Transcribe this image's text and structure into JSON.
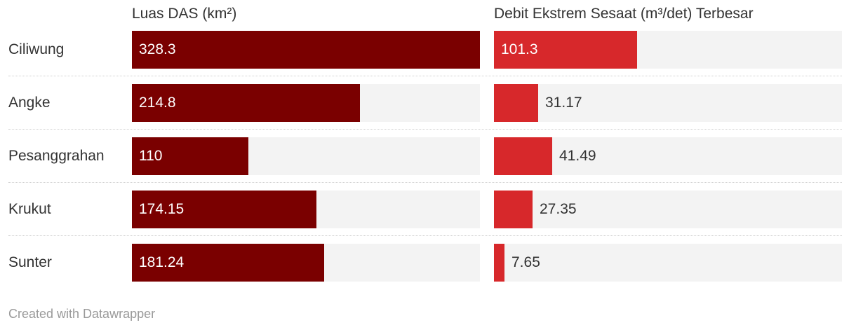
{
  "chart_data": {
    "type": "bar",
    "orientation": "horizontal",
    "categories": [
      "Ciliwung",
      "Angke",
      "Pesanggrahan",
      "Krukut",
      "Sunter"
    ],
    "series": [
      {
        "name": "Luas DAS (km²)",
        "values": [
          328.3,
          214.8,
          110,
          174.15,
          181.24
        ],
        "labels": [
          "328.3",
          "214.8",
          "110",
          "174.15",
          "181.24"
        ],
        "max": 328.3,
        "color": "#7a0000"
      },
      {
        "name": "Debit Ekstrem Sesaat (m³/det) Terbesar",
        "values": [
          101.3,
          31.17,
          41.49,
          27.35,
          7.65
        ],
        "labels": [
          "101.3",
          "31.17",
          "41.49",
          "27.35",
          "7.65"
        ],
        "max": 246.7,
        "color": "#d7282b"
      }
    ],
    "title": "",
    "xlabel": "",
    "ylabel": ""
  },
  "footer": "Created with Datawrapper",
  "colors": {
    "track": "#f3f3f3",
    "label_on_bar": "#ffffff",
    "label_off_bar": "#333333"
  }
}
